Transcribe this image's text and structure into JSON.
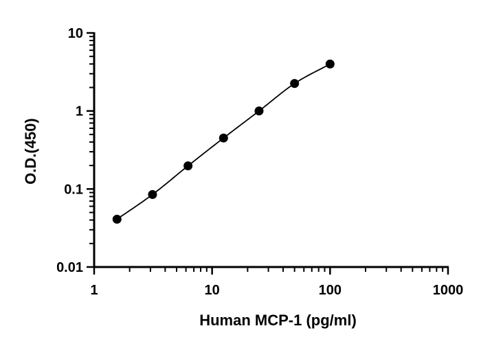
{
  "chart_data": {
    "type": "scatter",
    "title": "",
    "xlabel": "Human MCP-1 (pg/ml)",
    "ylabel": "O.D.(450)",
    "x_scale": "log",
    "y_scale": "log",
    "xlim": [
      1,
      1000
    ],
    "ylim": [
      0.01,
      10
    ],
    "x_ticks": [
      "1",
      "10",
      "100",
      "1000"
    ],
    "y_ticks": [
      "0.01",
      "0.1",
      "1",
      "10"
    ],
    "grid": false,
    "legend": "none",
    "fit_curve": true,
    "series": [
      {
        "x": [
          1.5625,
          3.125,
          6.25,
          12.5,
          25,
          50,
          100
        ],
        "y": [
          0.041,
          0.085,
          0.198,
          0.45,
          1.0,
          2.25,
          4.0
        ]
      }
    ],
    "colors": {
      "points": "#000000",
      "curve": "#000000",
      "axes": "#000000"
    }
  }
}
